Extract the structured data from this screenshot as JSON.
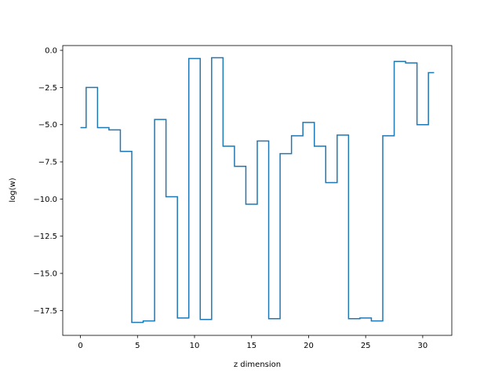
{
  "chart_data": {
    "type": "line",
    "step": "mid",
    "title": "",
    "xlabel": "z dimension",
    "ylabel": "log(w)",
    "xlim": [
      -1.55,
      32.55
    ],
    "ylim": [
      -19.17,
      0.32
    ],
    "xticks": [
      0,
      5,
      10,
      15,
      20,
      25,
      30
    ],
    "yticks": [
      0.0,
      -2.5,
      -5.0,
      -7.5,
      -10.0,
      -12.5,
      -15.0,
      -17.5
    ],
    "xtick_labels": [
      "0",
      "5",
      "10",
      "15",
      "20",
      "25",
      "30"
    ],
    "ytick_labels": [
      "0.0",
      "−2.5",
      "−5.0",
      "−7.5",
      "−10.0",
      "−12.5",
      "−15.0",
      "−17.5"
    ],
    "grid": false,
    "series": [
      {
        "color": "#1f77b4",
        "x": [
          0,
          1,
          2,
          3,
          4,
          5,
          6,
          7,
          8,
          9,
          10,
          11,
          12,
          13,
          14,
          15,
          16,
          17,
          18,
          19,
          20,
          21,
          22,
          23,
          24,
          25,
          26,
          27,
          28,
          29,
          30,
          31
        ],
        "values": [
          -5.2,
          -2.5,
          -5.2,
          -5.35,
          -6.8,
          -18.3,
          -18.2,
          -4.65,
          -9.85,
          -18.0,
          -0.55,
          -18.1,
          -0.5,
          -6.45,
          -7.8,
          -10.35,
          -6.1,
          -18.05,
          -6.95,
          -5.75,
          -4.85,
          -6.45,
          -8.9,
          -5.7,
          -18.05,
          -18.0,
          -18.2,
          -5.75,
          -0.75,
          -0.85,
          -5.0,
          -1.5
        ]
      }
    ]
  }
}
